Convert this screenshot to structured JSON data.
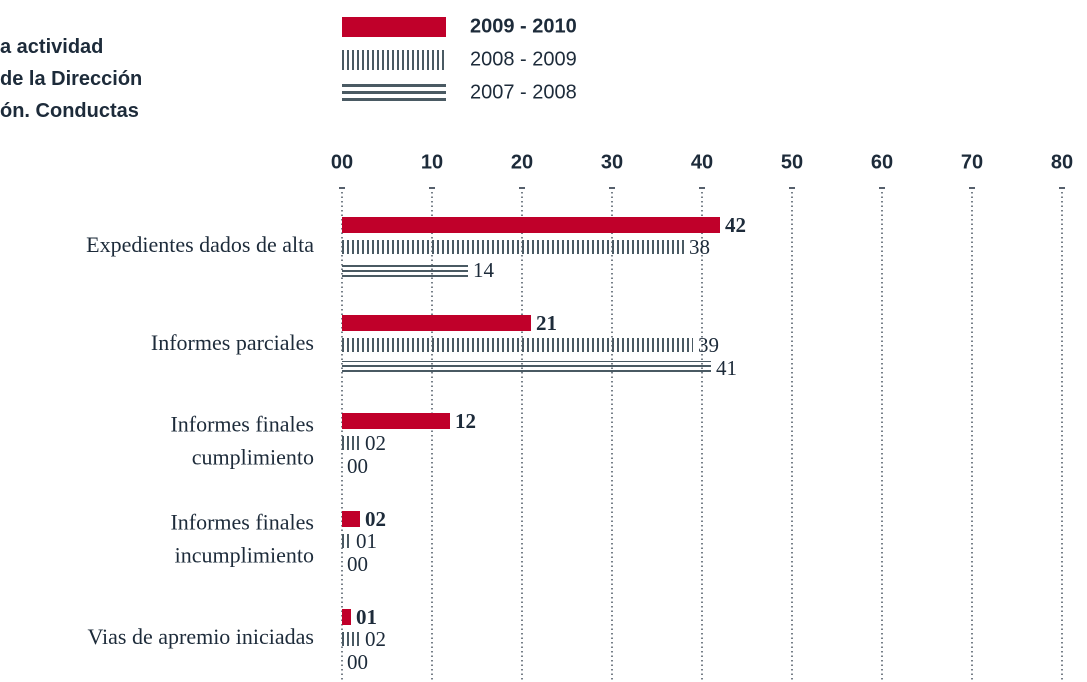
{
  "chart_data": {
    "type": "bar",
    "orientation": "horizontal",
    "title": "a actividad\nde la Dirección\nón. Conductas",
    "categories": [
      "Expedientes dados de alta",
      "Informes parciales",
      "Informes finales\ncumplimiento",
      "Informes finales\nincumplimiento",
      "Vias de apremio iniciadas"
    ],
    "series": [
      {
        "name": "2009 - 2010",
        "color": "#c0002a",
        "pattern": "solid",
        "values": [
          42,
          21,
          12,
          2,
          1
        ],
        "value_labels": [
          "42",
          "21",
          "12",
          "02",
          "01"
        ]
      },
      {
        "name": "2008 - 2009",
        "color": "#4a5a63",
        "pattern": "vertical-stripes",
        "values": [
          38,
          39,
          2,
          1,
          2
        ],
        "value_labels": [
          "38",
          "39",
          "02",
          "01",
          "02"
        ]
      },
      {
        "name": "2007 - 2008",
        "color": "#4a5a63",
        "pattern": "horizontal-lines",
        "values": [
          14,
          41,
          0,
          0,
          0
        ],
        "value_labels": [
          "14",
          "41",
          "00",
          "00",
          "00"
        ]
      }
    ],
    "xlim": [
      0,
      80
    ],
    "xticks": [
      {
        "value": 0,
        "label": "00"
      },
      10,
      20,
      30,
      40,
      50,
      60,
      70,
      80
    ],
    "grid": true,
    "legend": "top"
  }
}
